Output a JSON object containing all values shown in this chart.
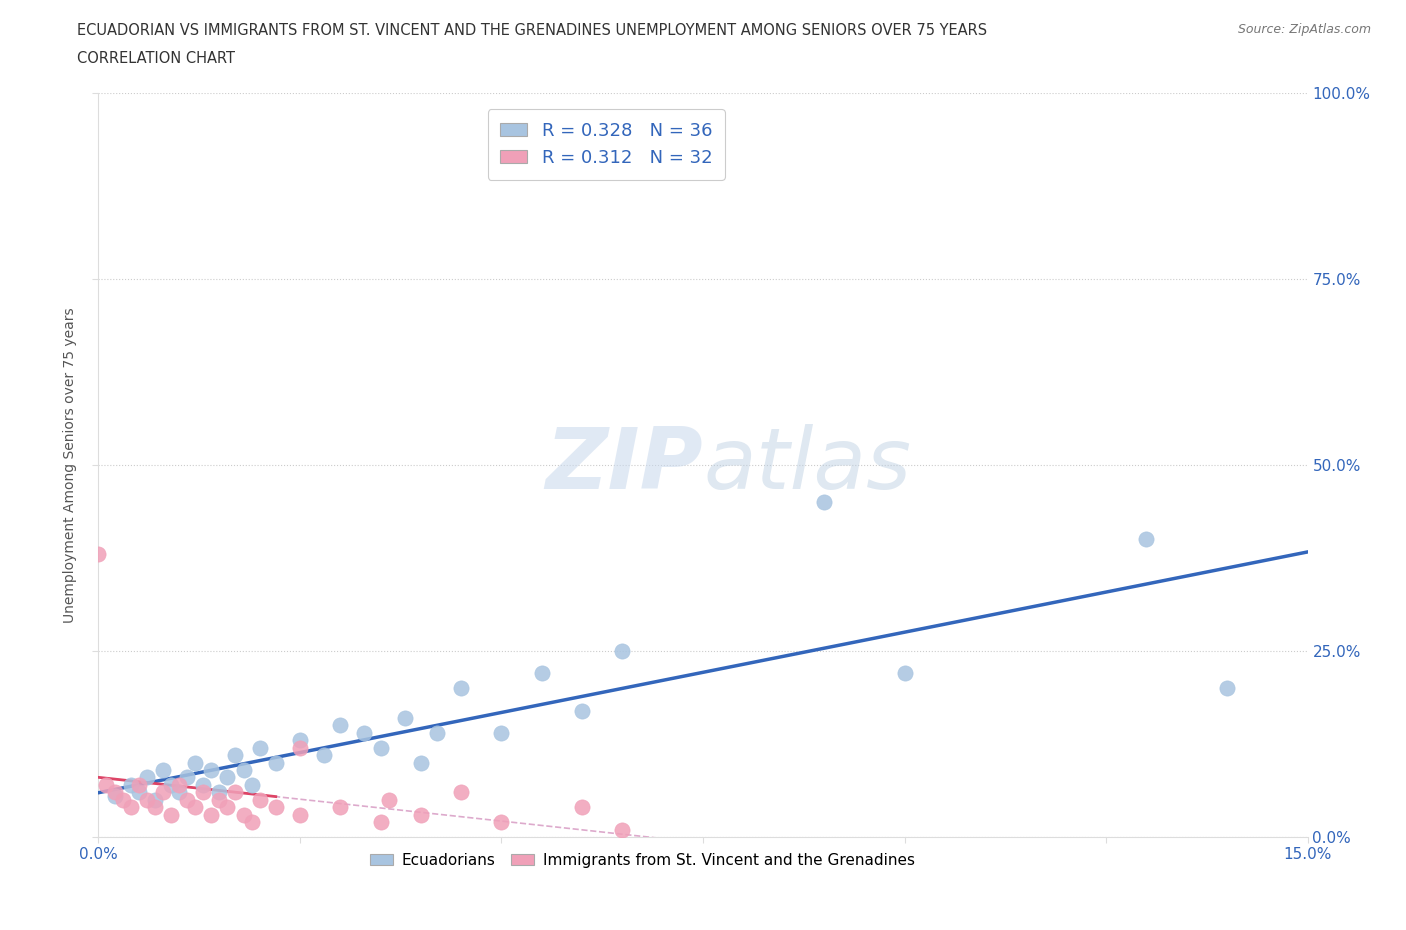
{
  "title_line1": "ECUADORIAN VS IMMIGRANTS FROM ST. VINCENT AND THE GRENADINES UNEMPLOYMENT AMONG SENIORS OVER 75 YEARS",
  "title_line2": "CORRELATION CHART",
  "source": "Source: ZipAtlas.com",
  "ylabel": "Unemployment Among Seniors over 75 years",
  "xlim": [
    0.0,
    0.15
  ],
  "ylim": [
    0.0,
    1.0
  ],
  "blue_R": 0.328,
  "blue_N": 36,
  "pink_R": 0.312,
  "pink_N": 32,
  "blue_color": "#a8c4e0",
  "pink_color": "#f0a0b8",
  "blue_line_color": "#3366bb",
  "pink_line_color": "#dd4466",
  "legend_blue_label": "Ecuadorians",
  "legend_pink_label": "Immigrants from St. Vincent and the Grenadines",
  "watermark_zip": "ZIP",
  "watermark_atlas": "atlas",
  "blue_scatter_x": [
    0.002,
    0.004,
    0.005,
    0.006,
    0.007,
    0.008,
    0.009,
    0.01,
    0.011,
    0.012,
    0.013,
    0.014,
    0.015,
    0.016,
    0.017,
    0.018,
    0.019,
    0.02,
    0.022,
    0.025,
    0.028,
    0.03,
    0.033,
    0.035,
    0.038,
    0.04,
    0.042,
    0.045,
    0.05,
    0.055,
    0.06,
    0.065,
    0.09,
    0.1,
    0.13,
    0.14
  ],
  "blue_scatter_y": [
    0.055,
    0.07,
    0.06,
    0.08,
    0.05,
    0.09,
    0.07,
    0.06,
    0.08,
    0.1,
    0.07,
    0.09,
    0.06,
    0.08,
    0.11,
    0.09,
    0.07,
    0.12,
    0.1,
    0.13,
    0.11,
    0.15,
    0.14,
    0.12,
    0.16,
    0.1,
    0.14,
    0.2,
    0.14,
    0.22,
    0.17,
    0.25,
    0.45,
    0.22,
    0.4,
    0.2
  ],
  "pink_scatter_x": [
    0.0,
    0.001,
    0.002,
    0.003,
    0.004,
    0.005,
    0.006,
    0.007,
    0.008,
    0.009,
    0.01,
    0.011,
    0.012,
    0.013,
    0.014,
    0.015,
    0.016,
    0.017,
    0.018,
    0.019,
    0.02,
    0.022,
    0.025,
    0.025,
    0.03,
    0.035,
    0.036,
    0.04,
    0.045,
    0.05,
    0.06,
    0.065
  ],
  "pink_scatter_y": [
    0.38,
    0.07,
    0.06,
    0.05,
    0.04,
    0.07,
    0.05,
    0.04,
    0.06,
    0.03,
    0.07,
    0.05,
    0.04,
    0.06,
    0.03,
    0.05,
    0.04,
    0.06,
    0.03,
    0.02,
    0.05,
    0.04,
    0.03,
    0.12,
    0.04,
    0.02,
    0.05,
    0.03,
    0.06,
    0.02,
    0.04,
    0.01
  ]
}
